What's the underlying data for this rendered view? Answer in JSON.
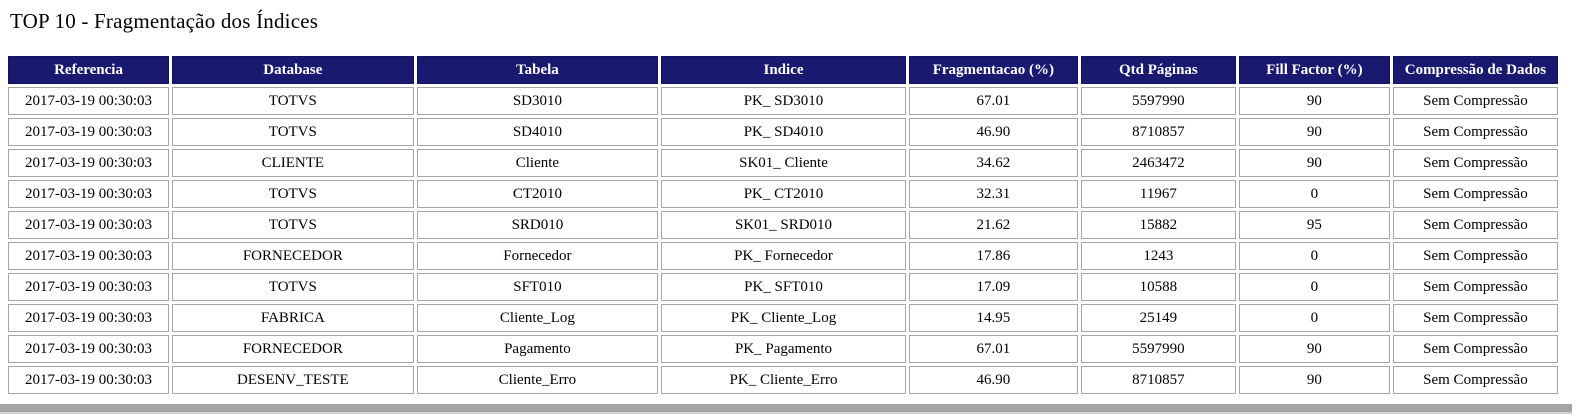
{
  "page": {
    "title": "TOP 10 - Fragmentação dos Índices"
  },
  "table": {
    "columns": [
      "Referencia",
      "Database",
      "Tabela",
      "Indice",
      "Fragmentacao (%)",
      "Qtd Páginas",
      "Fill Factor (%)",
      "Compressão de Dados"
    ],
    "rows": [
      [
        "2017-03-19 00:30:03",
        "TOTVS",
        "SD3010",
        "PK_ SD3010",
        "67.01",
        "5597990",
        "90",
        "Sem Compressão"
      ],
      [
        "2017-03-19 00:30:03",
        "TOTVS",
        "SD4010",
        "PK_ SD4010",
        "46.90",
        "8710857",
        "90",
        "Sem Compressão"
      ],
      [
        "2017-03-19 00:30:03",
        "CLIENTE",
        "Cliente",
        "SK01_ Cliente",
        "34.62",
        "2463472",
        "90",
        "Sem Compressão"
      ],
      [
        "2017-03-19 00:30:03",
        "TOTVS",
        "CT2010",
        "PK_ CT2010",
        "32.31",
        "11967",
        "0",
        "Sem Compressão"
      ],
      [
        "2017-03-19 00:30:03",
        "TOTVS",
        "SRD010",
        "SK01_ SRD010",
        "21.62",
        "15882",
        "95",
        "Sem Compressão"
      ],
      [
        "2017-03-19 00:30:03",
        "FORNECEDOR",
        "Fornecedor",
        "PK_ Fornecedor",
        "17.86",
        "1243",
        "0",
        "Sem Compressão"
      ],
      [
        "2017-03-19 00:30:03",
        "TOTVS",
        "SFT010",
        "PK_ SFT010",
        "17.09",
        "10588",
        "0",
        "Sem Compressão"
      ],
      [
        "2017-03-19 00:30:03",
        "FABRICA",
        "Cliente_Log",
        "PK_ Cliente_Log",
        "14.95",
        "25149",
        "0",
        "Sem Compressão"
      ],
      [
        "2017-03-19 00:30:03",
        "FORNECEDOR",
        "Pagamento",
        "PK_ Pagamento",
        "67.01",
        "5597990",
        "90",
        "Sem Compressão"
      ],
      [
        "2017-03-19 00:30:03",
        "DESENV_TESTE",
        "Cliente_Erro",
        "PK_ Cliente_Erro",
        "46.90",
        "8710857",
        "90",
        "Sem Compressão"
      ]
    ]
  },
  "colors": {
    "header_bg": "#191970",
    "header_text": "#ffffff",
    "cell_border": "#a6a6a6",
    "scrollbar": "#a5a5a5"
  }
}
